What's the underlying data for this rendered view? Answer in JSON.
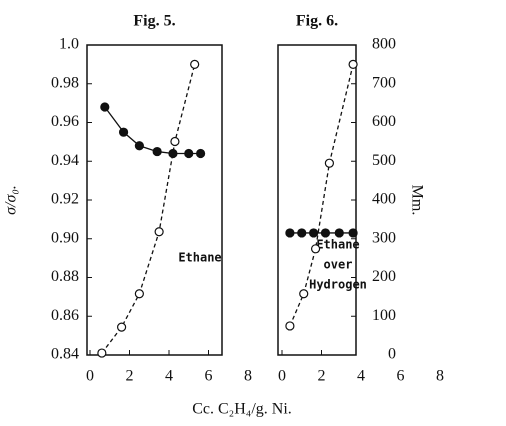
{
  "xlabel": "Cc. C₂H₄/g. Ni.",
  "chart_data": [
    {
      "type": "scatter",
      "title": "Fig. 5.",
      "ylabel": "σ/σ₀.",
      "annotation": "Ethane",
      "xlim": [
        0,
        8
      ],
      "xticks": [
        0,
        2,
        4,
        6,
        8
      ],
      "ylim": [
        0.84,
        1.0
      ],
      "yticks": [
        0.84,
        0.86,
        0.88,
        {
          "value": 0.9,
          "label": "0.90"
        },
        0.92,
        0.94,
        0.96,
        0.98,
        {
          "value": 1.0,
          "label": "1.0"
        }
      ],
      "y2lim": [
        0,
        800
      ],
      "series": [
        {
          "x": [
            0.75,
            1.7,
            2.5,
            3.4,
            4.2,
            5.0,
            5.6
          ],
          "values": [
            0.968,
            0.955,
            0.948,
            0.945,
            0.944,
            0.944,
            0.944
          ],
          "color": "#111",
          "marker": "filled",
          "line": "solid"
        },
        {
          "x": [
            0.6,
            1.6,
            2.5,
            3.5,
            4.3,
            5.3
          ],
          "values": [
            5,
            72,
            158,
            318,
            551,
            750
          ],
          "color": "#111",
          "marker": "open",
          "line": "dashed",
          "axis": "y2"
        }
      ]
    },
    {
      "type": "scatter",
      "title": "Fig. 6.",
      "y2label": "Mm.",
      "annotation": [
        "Ethane",
        "over",
        "Hydrogen"
      ],
      "xlim": [
        0,
        8
      ],
      "xticks": [
        0,
        2,
        4,
        6,
        8
      ],
      "ylim": [
        0.84,
        1.0
      ],
      "y2lim": [
        0,
        800
      ],
      "y2ticks": [
        0,
        100,
        200,
        300,
        400,
        500,
        600,
        700,
        800
      ],
      "series": [
        {
          "x": [
            0.4,
            1.0,
            1.6,
            2.2,
            2.9,
            3.6
          ],
          "values": [
            0.903,
            0.903,
            0.903,
            0.903,
            0.903,
            0.903
          ],
          "color": "#111",
          "marker": "filled",
          "line": "solid"
        },
        {
          "x": [
            0.4,
            1.1,
            1.7,
            2.4,
            3.6
          ],
          "values": [
            75,
            158,
            274,
            495,
            750
          ],
          "color": "#111",
          "marker": "open",
          "line": "dashed",
          "axis": "y2"
        }
      ]
    }
  ]
}
